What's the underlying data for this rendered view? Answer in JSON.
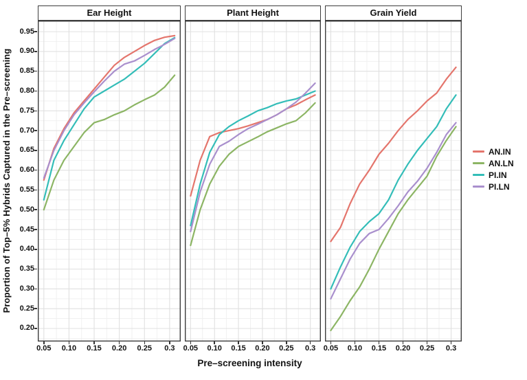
{
  "figure": {
    "y_axis_label": "Proportion of Top–5% Hybrids Captured in the Pre–screening",
    "x_axis_label": "Pre–screening intensity"
  },
  "chart_data": {
    "type": "line",
    "title": "",
    "xlabel": "Pre–screening intensity",
    "ylabel": "Proportion of Top–5% Hybrids Captured in the Pre–screening",
    "xlim": [
      0.038,
      0.322
    ],
    "ylim": [
      0.167,
      0.978
    ],
    "grid": "on",
    "x_ticks": [
      0.05,
      0.1,
      0.15,
      0.2,
      0.25,
      0.3
    ],
    "x_tick_labels": [
      "0.05",
      "0.10",
      "0.15",
      "0.20",
      "0.25",
      "0.3"
    ],
    "x_minor_ticks": [
      0.075,
      0.125,
      0.175,
      0.225,
      0.275
    ],
    "y_ticks": [
      0.2,
      0.25,
      0.3,
      0.35,
      0.4,
      0.45,
      0.5,
      0.55,
      0.6,
      0.65,
      0.7,
      0.75,
      0.8,
      0.85,
      0.9,
      0.95
    ],
    "y_tick_labels": [
      "0.20",
      "0.25",
      "0.30",
      "0.35",
      "0.40",
      "0.45",
      "0.50",
      "0.55",
      "0.60",
      "0.65",
      "0.70",
      "0.75",
      "0.80",
      "0.85",
      "0.90",
      "0.95"
    ],
    "y_minor_ticks": [
      0.175,
      0.225,
      0.275,
      0.325,
      0.375,
      0.425,
      0.475,
      0.525,
      0.575,
      0.625,
      0.675,
      0.725,
      0.775,
      0.825,
      0.875,
      0.925,
      0.975
    ],
    "x": [
      0.05,
      0.07,
      0.09,
      0.11,
      0.13,
      0.15,
      0.17,
      0.19,
      0.21,
      0.23,
      0.25,
      0.27,
      0.29,
      0.31
    ],
    "facets": [
      {
        "title": "Ear Height",
        "series": [
          {
            "name": "AN.IN",
            "values": [
              0.575,
              0.655,
              0.705,
              0.745,
              0.775,
              0.805,
              0.835,
              0.865,
              0.885,
              0.9,
              0.915,
              0.928,
              0.936,
              0.94
            ]
          },
          {
            "name": "AN.LN",
            "values": [
              0.5,
              0.575,
              0.625,
              0.66,
              0.695,
              0.72,
              0.728,
              0.74,
              0.75,
              0.765,
              0.778,
              0.79,
              0.81,
              0.84
            ]
          },
          {
            "name": "PI.IN",
            "values": [
              0.525,
              0.625,
              0.675,
              0.715,
              0.755,
              0.785,
              0.8,
              0.815,
              0.83,
              0.85,
              0.87,
              0.895,
              0.92,
              0.935
            ]
          },
          {
            "name": "PI.LN",
            "values": [
              0.58,
              0.65,
              0.7,
              0.74,
              0.77,
              0.798,
              0.825,
              0.85,
              0.868,
              0.876,
              0.89,
              0.905,
              0.918,
              0.933
            ]
          }
        ]
      },
      {
        "title": "Plant Height",
        "series": [
          {
            "name": "AN.IN",
            "values": [
              0.535,
              0.625,
              0.685,
              0.695,
              0.7,
              0.705,
              0.712,
              0.72,
              0.728,
              0.74,
              0.755,
              0.765,
              0.778,
              0.79
            ]
          },
          {
            "name": "AN.LN",
            "values": [
              0.41,
              0.5,
              0.565,
              0.61,
              0.64,
              0.66,
              0.672,
              0.684,
              0.697,
              0.707,
              0.717,
              0.725,
              0.745,
              0.77
            ]
          },
          {
            "name": "PI.IN",
            "values": [
              0.46,
              0.565,
              0.645,
              0.69,
              0.71,
              0.725,
              0.737,
              0.75,
              0.758,
              0.768,
              0.775,
              0.78,
              0.79,
              0.8
            ]
          },
          {
            "name": "PI.LN",
            "values": [
              0.445,
              0.545,
              0.615,
              0.66,
              0.673,
              0.69,
              0.705,
              0.716,
              0.728,
              0.74,
              0.755,
              0.772,
              0.795,
              0.82
            ]
          }
        ]
      },
      {
        "title": "Grain Yield",
        "series": [
          {
            "name": "AN.IN",
            "values": [
              0.42,
              0.455,
              0.515,
              0.565,
              0.6,
              0.64,
              0.668,
              0.7,
              0.728,
              0.75,
              0.775,
              0.795,
              0.83,
              0.86
            ]
          },
          {
            "name": "AN.LN",
            "values": [
              0.195,
              0.23,
              0.27,
              0.305,
              0.35,
              0.4,
              0.445,
              0.49,
              0.525,
              0.555,
              0.585,
              0.635,
              0.675,
              0.71
            ]
          },
          {
            "name": "PI.IN",
            "values": [
              0.3,
              0.355,
              0.405,
              0.445,
              0.47,
              0.49,
              0.525,
              0.575,
              0.615,
              0.65,
              0.68,
              0.71,
              0.755,
              0.79
            ]
          },
          {
            "name": "PI.LN",
            "values": [
              0.275,
              0.325,
              0.375,
              0.415,
              0.44,
              0.45,
              0.478,
              0.51,
              0.545,
              0.572,
              0.605,
              0.645,
              0.69,
              0.72
            ]
          }
        ]
      }
    ],
    "legend": {
      "position": "right",
      "entries": [
        {
          "label": "AN.IN",
          "color": "#e4756c"
        },
        {
          "label": "AN.LN",
          "color": "#8cb564"
        },
        {
          "label": "PI.IN",
          "color": "#33bdb8"
        },
        {
          "label": "PI.LN",
          "color": "#a98fcd"
        }
      ]
    },
    "style": {
      "major_grid_color": "#e0e0e0",
      "minor_grid_color": "#efefef",
      "panel_border_color": "#3c3c3c",
      "text_color": "#111111"
    }
  }
}
